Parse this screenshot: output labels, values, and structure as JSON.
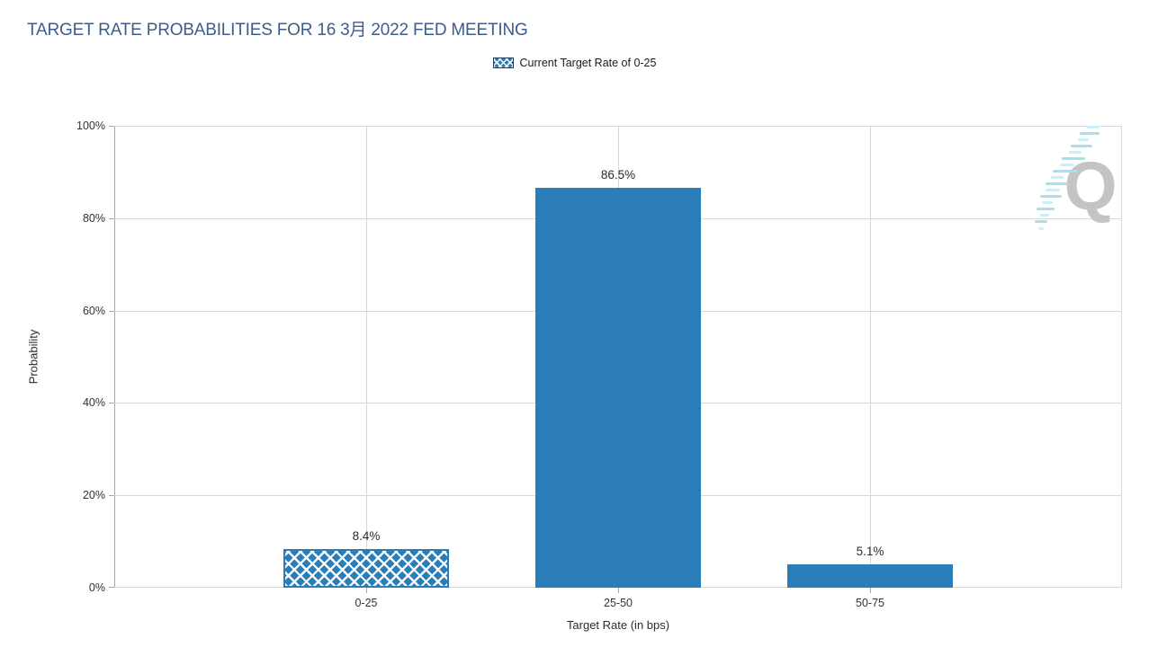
{
  "title": "TARGET RATE PROBABILITIES FOR 16 3月 2022 FED MEETING",
  "legend": {
    "swatch": "crosshatch-blue",
    "label": "Current Target Rate of 0-25"
  },
  "colors": {
    "bar": "#2b7db8",
    "title": "#3e5c8a",
    "grid": "#d8d8d8",
    "axis": "#a6a6a6",
    "text": "#333333",
    "watermark_gray": "#c4c4c4",
    "watermark_blue": "#a9def2"
  },
  "watermark": {
    "letter": "Q"
  },
  "chart_data": {
    "type": "bar",
    "title": "TARGET RATE PROBABILITIES FOR 16 3月 2022 FED MEETING",
    "categories": [
      "0-25",
      "25-50",
      "50-75"
    ],
    "values": [
      8.4,
      86.5,
      5.1
    ],
    "value_labels": [
      "8.4%",
      "86.5%",
      "5.1%"
    ],
    "highlighted_category": "0-25",
    "series_name": "Current Target Rate of 0-25",
    "xlabel": "Target Rate (in bps)",
    "ylabel": "Probability",
    "ylim": [
      0,
      100
    ],
    "ytick_values": [
      0,
      20,
      40,
      60,
      80,
      100
    ],
    "ytick_labels": [
      "0%",
      "20%",
      "40%",
      "60%",
      "80%",
      "100%"
    ],
    "grid": true,
    "legend_position": "top-center"
  }
}
